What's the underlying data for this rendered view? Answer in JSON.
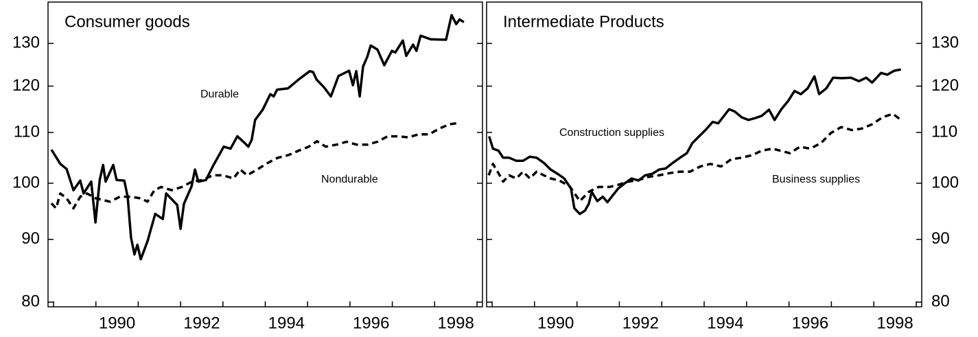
{
  "chart_data": [
    {
      "type": "line",
      "title": "Consumer goods",
      "log_y": true,
      "ytick_side": "left",
      "xlim": [
        1988.87,
        1999.13
      ],
      "ylim": [
        79.3,
        140.5
      ],
      "xticks": [
        {
          "value": 1990.5,
          "label": "1990"
        },
        {
          "value": 1992.5,
          "label": "1992"
        },
        {
          "value": 1994.5,
          "label": "1994"
        },
        {
          "value": 1996.5,
          "label": "1996"
        },
        {
          "value": 1998.5,
          "label": "1998"
        }
      ],
      "xminorticks": [
        1989,
        1990,
        1991,
        1992,
        1993,
        1994,
        1995,
        1996,
        1997,
        1998,
        1999
      ],
      "yticks": [
        80,
        90,
        100,
        110,
        120,
        130
      ],
      "series": [
        {
          "name": "Durable",
          "color": "#000000",
          "style": "solid",
          "x": [
            1988.95,
            1989.16,
            1989.31,
            1989.47,
            1989.63,
            1989.71,
            1989.89,
            1989.99,
            1990.09,
            1990.17,
            1990.23,
            1990.41,
            1990.49,
            1990.67,
            1990.75,
            1990.83,
            1990.91,
            1990.98,
            1991.06,
            1991.22,
            1991.4,
            1991.58,
            1991.66,
            1991.92,
            1992.0,
            1992.08,
            1992.26,
            1992.34,
            1992.42,
            1992.6,
            1992.76,
            1993.02,
            1993.18,
            1993.34,
            1993.52,
            1993.6,
            1993.68,
            1993.76,
            1993.94,
            1994.12,
            1994.2,
            1994.28,
            1994.54,
            1994.79,
            1995.05,
            1995.13,
            1995.21,
            1995.39,
            1995.55,
            1995.73,
            1995.98,
            1996.07,
            1996.15,
            1996.23,
            1996.31,
            1996.41,
            1996.49,
            1996.65,
            1996.81,
            1996.99,
            1997.07,
            1997.25,
            1997.33,
            1997.49,
            1997.57,
            1997.67,
            1997.91,
            1998.27,
            1998.4,
            1998.51,
            1998.59,
            1998.69
          ],
          "values": [
            106.5,
            103.7,
            102.7,
            98.7,
            100.5,
            98.1,
            100.3,
            92.9,
            100.6,
            103.5,
            100.3,
            103.5,
            100.6,
            100.5,
            97.5,
            90.3,
            87.5,
            89.1,
            86.7,
            89.7,
            94.4,
            93.5,
            98.1,
            96,
            91.8,
            96.2,
            99.4,
            102.6,
            100.3,
            100.6,
            103.2,
            107.1,
            106.7,
            109.2,
            107.8,
            107.1,
            108.5,
            112.6,
            114.8,
            118.2,
            117.7,
            119.2,
            119.5,
            121.5,
            123.4,
            123.2,
            121.5,
            119.7,
            117.7,
            122.3,
            123.5,
            120.2,
            123.4,
            117.7,
            124.5,
            126.8,
            129.5,
            128.5,
            124.8,
            128.2,
            127.8,
            130.7,
            127,
            129.7,
            128.2,
            131.9,
            131,
            130.9,
            137.1,
            134.8,
            136,
            135.3
          ]
        },
        {
          "name": "Nondurable",
          "color": "#000000",
          "style": "dashed",
          "x": [
            1988.95,
            1989.06,
            1989.16,
            1989.31,
            1989.47,
            1989.63,
            1989.79,
            1990.0,
            1990.33,
            1990.57,
            1990.81,
            1991.06,
            1991.22,
            1991.38,
            1991.54,
            1991.79,
            1992.03,
            1992.27,
            1992.52,
            1992.76,
            1993.0,
            1993.25,
            1993.41,
            1993.57,
            1993.81,
            1994.06,
            1994.3,
            1994.54,
            1994.79,
            1995.03,
            1995.22,
            1995.43,
            1995.68,
            1995.92,
            1996.16,
            1996.41,
            1996.65,
            1996.89,
            1997.14,
            1997.38,
            1997.62,
            1997.87,
            1998.11,
            1998.35,
            1998.59
          ],
          "values": [
            96.3,
            95.4,
            98.1,
            97.2,
            95.4,
            97.5,
            98.1,
            97.2,
            96.6,
            97.5,
            97.5,
            97.2,
            96.6,
            98.7,
            99.3,
            98.7,
            99.3,
            100.3,
            100.6,
            101.5,
            101.5,
            100.9,
            102.6,
            101.5,
            102.6,
            103.9,
            104.9,
            105.4,
            106.3,
            107.1,
            108.2,
            107.1,
            107.5,
            108.1,
            107.5,
            107.5,
            108.1,
            109.2,
            109.2,
            109,
            109.6,
            109.6,
            110.8,
            111.7,
            112
          ]
        }
      ]
    },
    {
      "type": "line",
      "title": "Intermediate Products",
      "log_y": true,
      "ytick_side": "right",
      "xlim": [
        1988.87,
        1999.13
      ],
      "ylim": [
        79.3,
        140.5
      ],
      "xticks": [
        {
          "value": 1990.5,
          "label": "1990"
        },
        {
          "value": 1992.5,
          "label": "1992"
        },
        {
          "value": 1994.5,
          "label": "1994"
        },
        {
          "value": 1996.5,
          "label": "1996"
        },
        {
          "value": 1998.5,
          "label": "1998"
        }
      ],
      "xminorticks": [
        1989,
        1990,
        1991,
        1992,
        1993,
        1994,
        1995,
        1996,
        1997,
        1998,
        1999
      ],
      "yticks": [
        80,
        90,
        100,
        110,
        120,
        130
      ],
      "series": [
        {
          "name": "Construction supplies",
          "color": "#000000",
          "style": "solid",
          "x": [
            1988.93,
            1989.02,
            1989.15,
            1989.26,
            1989.4,
            1989.57,
            1989.73,
            1989.89,
            1990.05,
            1990.22,
            1990.38,
            1990.54,
            1990.7,
            1990.86,
            1990.94,
            1991.07,
            1991.19,
            1991.28,
            1991.35,
            1991.48,
            1991.61,
            1991.72,
            1991.84,
            1991.97,
            1992.13,
            1992.29,
            1992.45,
            1992.61,
            1992.78,
            1992.94,
            1993.09,
            1993.26,
            1993.43,
            1993.59,
            1993.72,
            1993.88,
            1994.03,
            1994.2,
            1994.33,
            1994.47,
            1994.59,
            1994.72,
            1994.88,
            1995.04,
            1995.2,
            1995.36,
            1995.53,
            1995.66,
            1995.82,
            1995.98,
            1996.13,
            1996.28,
            1996.44,
            1996.6,
            1996.71,
            1996.88,
            1997.04,
            1997.25,
            1997.46,
            1997.65,
            1997.82,
            1997.96,
            1998.17,
            1998.32,
            1998.48,
            1998.64
          ],
          "values": [
            109.2,
            106.7,
            106.3,
            104.9,
            104.9,
            104.3,
            104.3,
            105.1,
            104.9,
            103.9,
            102.6,
            101.8,
            100.9,
            99,
            95.4,
            94.4,
            95,
            96.2,
            98.4,
            96.7,
            97.5,
            96.5,
            97.7,
            99,
            100,
            100.9,
            100.5,
            101.5,
            101.8,
            102.6,
            102.8,
            103.9,
            104.9,
            105.8,
            107.8,
            109.2,
            110.5,
            112.2,
            111.9,
            113.5,
            114.9,
            114.4,
            113.2,
            112.6,
            113,
            113.5,
            114.8,
            112.6,
            114.9,
            116.7,
            118.9,
            118.2,
            119.5,
            122.2,
            118.2,
            119.5,
            121.9,
            121.8,
            121.9,
            121.1,
            121.9,
            120.8,
            123,
            122.6,
            123.5,
            123.8
          ]
        },
        {
          "name": "Business supplies",
          "color": "#000000",
          "style": "dashed",
          "x": [
            1988.92,
            1989.02,
            1989.15,
            1989.26,
            1989.4,
            1989.57,
            1989.73,
            1989.89,
            1990.05,
            1990.22,
            1990.38,
            1990.59,
            1990.83,
            1991.07,
            1991.28,
            1991.51,
            1991.77,
            1991.97,
            1992.21,
            1992.45,
            1992.69,
            1992.94,
            1993.18,
            1993.43,
            1993.67,
            1993.91,
            1994.15,
            1994.4,
            1994.64,
            1994.88,
            1995.13,
            1995.36,
            1995.61,
            1996.02,
            1996.26,
            1996.5,
            1996.75,
            1996.99,
            1997.23,
            1997.48,
            1997.72,
            1997.96,
            1998.21,
            1998.45,
            1998.64
          ],
          "values": [
            101.5,
            103.7,
            101.9,
            100.3,
            101.5,
            100.9,
            102.2,
            100.9,
            102.2,
            101.5,
            100.9,
            100.5,
            99.4,
            96.7,
            98.4,
            99.3,
            99.3,
            99.7,
            100.3,
            100.6,
            101.2,
            101.5,
            101.9,
            102.2,
            102.2,
            103.2,
            103.7,
            103.2,
            104.6,
            104.9,
            105.4,
            106.3,
            106.7,
            105.8,
            107.1,
            106.7,
            107.8,
            109.9,
            111.1,
            110.5,
            110.8,
            111.7,
            113.2,
            113.9,
            112.6
          ]
        }
      ]
    }
  ]
}
